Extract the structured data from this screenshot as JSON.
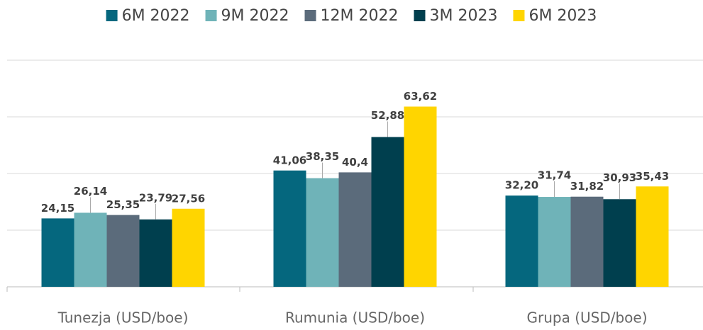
{
  "chart_data": {
    "type": "bar",
    "categories": [
      "Tunezja  (USD/boe)",
      "Rumunia (USD/boe)",
      "Grupa (USD/boe)"
    ],
    "series": [
      {
        "name": "6M 2022",
        "color": "#05677e",
        "values": [
          24.15,
          41.06,
          32.2
        ],
        "value_labels": [
          "24,15",
          "41,06",
          "32,20"
        ]
      },
      {
        "name": "9M 2022",
        "color": "#6fb3b8",
        "values": [
          26.14,
          38.35,
          31.74
        ],
        "value_labels": [
          "26,14",
          "38,35",
          "31,74"
        ]
      },
      {
        "name": "12M 2022",
        "color": "#5b6b7b",
        "values": [
          25.35,
          40.4,
          31.82
        ],
        "value_labels": [
          "25,35",
          "40,4",
          "31,82"
        ]
      },
      {
        "name": "3M 2023",
        "color": "#003f4e",
        "values": [
          23.79,
          52.88,
          30.93
        ],
        "value_labels": [
          "23,79",
          "52,88",
          "30,93"
        ]
      },
      {
        "name": "6M 2023",
        "color": "#ffd500",
        "values": [
          27.56,
          63.62,
          35.43
        ],
        "value_labels": [
          "27,56",
          "63,62",
          "35,43"
        ]
      }
    ],
    "ylim": [
      0,
      80
    ],
    "yticks": [
      0,
      20,
      40,
      60,
      80
    ],
    "grid": true,
    "legend": "top"
  }
}
